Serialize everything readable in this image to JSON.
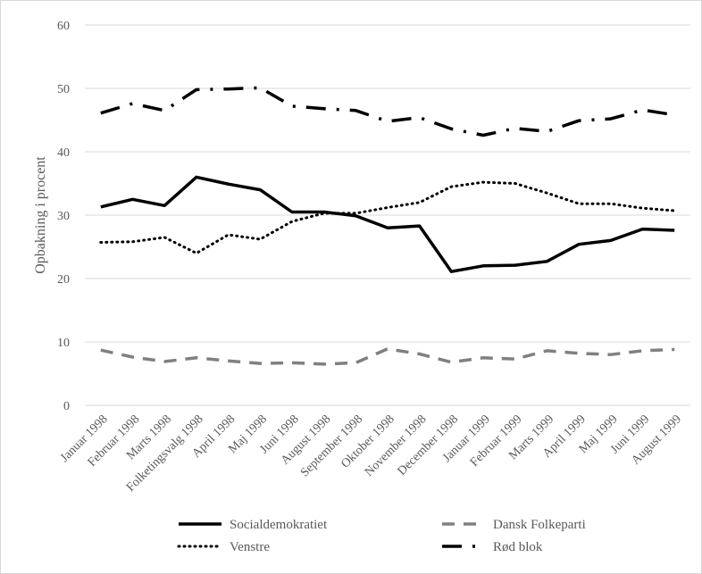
{
  "chart_data": {
    "type": "line",
    "title": "",
    "xlabel": "",
    "ylabel": "Opbakning i procent",
    "ylim": [
      0,
      60
    ],
    "yticks": [
      "0",
      "10",
      "20",
      "30",
      "40",
      "50",
      "60"
    ],
    "grid": true,
    "legend_position": "bottom",
    "categories": [
      "Januar 1998",
      "Februar 1998",
      "Marts 1998",
      "Folketingsvalg 1998",
      "April 1998",
      "Maj 1998",
      "Juni 1998",
      "August 1998",
      "September 1998",
      "Oktober 1998",
      "November 1998",
      "December 1998",
      "Januar 1999",
      "Februar 1999",
      "Marts 1999",
      "April 1999",
      "Maj 1999",
      "Juni 1999",
      "August 1999"
    ],
    "series": [
      {
        "name": "Socialdemokratiet",
        "color": "#000000",
        "style": "solid",
        "values": [
          31.3,
          32.5,
          31.5,
          36.0,
          34.9,
          34.0,
          30.5,
          30.5,
          29.9,
          28.0,
          28.3,
          21.1,
          22.0,
          22.1,
          22.7,
          25.4,
          26.0,
          27.8,
          27.6
        ]
      },
      {
        "name": "Dansk Folkeparti",
        "color": "#808080",
        "style": "dash",
        "values": [
          8.7,
          7.6,
          6.9,
          7.5,
          7.0,
          6.6,
          6.7,
          6.5,
          6.7,
          8.9,
          8.1,
          6.8,
          7.5,
          7.3,
          8.6,
          8.2,
          8.0,
          8.6,
          8.8
        ]
      },
      {
        "name": "Venstre",
        "color": "#000000",
        "style": "dot",
        "values": [
          25.7,
          25.8,
          26.5,
          24.0,
          26.9,
          26.2,
          29.0,
          30.3,
          30.3,
          31.2,
          32.0,
          34.5,
          35.2,
          35.0,
          33.5,
          31.8,
          31.8,
          31.1,
          30.7
        ]
      },
      {
        "name": "Rød blok",
        "color": "#000000",
        "style": "dashdot",
        "values": [
          46.1,
          47.6,
          46.5,
          49.8,
          49.9,
          50.1,
          47.2,
          46.8,
          46.5,
          44.8,
          45.4,
          43.6,
          42.6,
          43.7,
          43.2,
          44.9,
          45.2,
          46.6,
          45.8
        ]
      }
    ]
  }
}
